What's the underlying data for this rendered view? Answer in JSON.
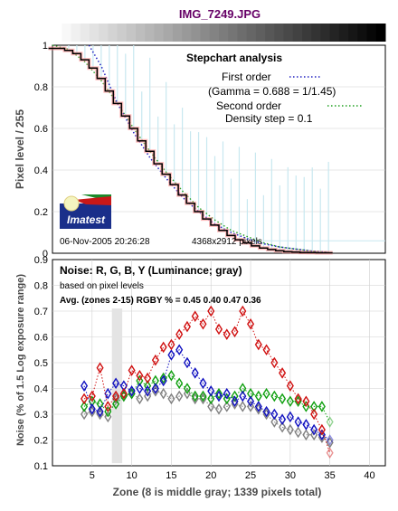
{
  "title": "IMG_7249.JPG",
  "colors": {
    "title": "#660066",
    "panel_text": "#000000",
    "axis_label": "#4a4a4a",
    "first_order_fit": "#2020c0",
    "second_order_fit": "#20a020",
    "red": "#d01010",
    "green": "#10a010",
    "blue": "#1010c0",
    "gray": "#808080",
    "highlight_band": "#e4e4e4",
    "stepchart_trace": "#000000",
    "stepchart_pixels": "#ff8888",
    "stepchart_noise": "#c8e8f0"
  },
  "logo": {
    "text": "Imatest",
    "colors": {
      "navy": "#1a2f8a",
      "red": "#c81818",
      "green": "#1a8a2a",
      "sun": "#f4f4c0"
    }
  },
  "chart_data": [
    {
      "type": "line",
      "title": "Stepchart analysis",
      "ylabel": "Pixel level / 255",
      "ylim": [
        0,
        1
      ],
      "xlim": [
        1,
        42
      ],
      "yticks": [
        "0",
        "0.2",
        "0.4",
        "0.6",
        "0.8",
        "1"
      ],
      "grid": true,
      "legend": {
        "position": "top-right",
        "first_order": "First order",
        "gamma": "(Gamma = 0.688 = 1/1.45)",
        "second_order": "Second order",
        "density_step": "Density step = 0.1"
      },
      "date_label": "06-Nov-2005 20:26:28",
      "size_label": "4368x2912 pixels",
      "gradient_strip": "dark-to-light step wedge (white at left, black at right)",
      "series": [
        {
          "name": "Second order",
          "style": "green dotted, hidden behind trace",
          "x": [
            1,
            3,
            5,
            7,
            9,
            11,
            13,
            15,
            17,
            19,
            21,
            23,
            25,
            27,
            29,
            31,
            33,
            35
          ],
          "values": [
            1.0,
            0.98,
            0.92,
            0.83,
            0.72,
            0.6,
            0.49,
            0.39,
            0.3,
            0.22,
            0.16,
            0.11,
            0.08,
            0.05,
            0.03,
            0.02,
            0.01,
            0.005
          ]
        },
        {
          "name": "First order",
          "style": "blue dotted",
          "x": [
            5.5,
            7,
            9,
            11,
            13,
            15,
            17,
            19,
            21,
            23,
            25,
            27,
            29,
            31,
            33,
            35
          ],
          "values": [
            1.0,
            0.9,
            0.72,
            0.58,
            0.46,
            0.36,
            0.27,
            0.2,
            0.14,
            0.1,
            0.07,
            0.045,
            0.03,
            0.02,
            0.01,
            0.005
          ]
        },
        {
          "name": "Stepchart",
          "style": "black step trace",
          "x": [
            1,
            2,
            3,
            4,
            5,
            6,
            7,
            8,
            9,
            10,
            11,
            12,
            13,
            14,
            15,
            16,
            17,
            18,
            19,
            20,
            21,
            22,
            23,
            24,
            25,
            26,
            27,
            28,
            29,
            30,
            31,
            32,
            33,
            34,
            35
          ],
          "values": [
            0.985,
            0.985,
            0.975,
            0.96,
            0.93,
            0.89,
            0.84,
            0.78,
            0.72,
            0.66,
            0.6,
            0.54,
            0.49,
            0.43,
            0.38,
            0.33,
            0.28,
            0.24,
            0.2,
            0.165,
            0.135,
            0.11,
            0.085,
            0.065,
            0.05,
            0.035,
            0.025,
            0.018,
            0.012,
            0.008,
            0.006,
            0.004,
            0.003,
            0.002,
            0.002
          ]
        }
      ]
    },
    {
      "type": "scatter",
      "title": "Noise: R, G, B, Y (Luminance; gray)",
      "subtitle": "based on pixel levels",
      "avg_label": "Avg. (zones 2-15) RGBY % = 0.45  0.40  0.47  0.36",
      "xlabel": "Zone  (8 is middle gray;  1339 pixels total)",
      "ylabel": "Noise  (% of 1.5 Log exposure range)",
      "xlim": [
        0,
        42
      ],
      "ylim": [
        0.1,
        0.9
      ],
      "xticks": [
        "5",
        "10",
        "15",
        "20",
        "25",
        "30",
        "35",
        "40"
      ],
      "yticks": [
        "0.1",
        "0.2",
        "0.3",
        "0.4",
        "0.5",
        "0.6",
        "0.7",
        "0.8",
        "0.9"
      ],
      "grid": true,
      "highlight_band_zone": [
        7.5,
        8.8
      ],
      "x": [
        4,
        5,
        6,
        7,
        8,
        9,
        10,
        11,
        12,
        13,
        14,
        15,
        16,
        17,
        18,
        19,
        20,
        21,
        22,
        23,
        24,
        25,
        26,
        27,
        28,
        29,
        30,
        31,
        32,
        33,
        34,
        35
      ],
      "series": [
        {
          "name": "R",
          "color_key": "red",
          "values": [
            0.36,
            0.37,
            0.48,
            0.33,
            0.37,
            0.38,
            0.47,
            0.45,
            0.44,
            0.51,
            0.56,
            0.57,
            0.61,
            0.64,
            0.68,
            0.65,
            0.7,
            0.63,
            0.61,
            0.62,
            0.7,
            0.65,
            0.57,
            0.55,
            0.5,
            0.46,
            0.41,
            0.36,
            0.35,
            0.3,
            0.24,
            0.15
          ]
        },
        {
          "name": "G",
          "color_key": "green",
          "values": [
            0.33,
            0.35,
            0.34,
            0.31,
            0.34,
            0.37,
            0.38,
            0.43,
            0.41,
            0.43,
            0.44,
            0.45,
            0.42,
            0.4,
            0.37,
            0.37,
            0.36,
            0.38,
            0.36,
            0.37,
            0.4,
            0.38,
            0.37,
            0.38,
            0.37,
            0.36,
            0.35,
            0.35,
            0.33,
            0.33,
            0.33,
            0.27
          ]
        },
        {
          "name": "B",
          "color_key": "blue",
          "values": [
            0.41,
            0.32,
            0.31,
            0.38,
            0.42,
            0.41,
            0.39,
            0.4,
            0.39,
            0.4,
            0.43,
            0.53,
            0.55,
            0.5,
            0.46,
            0.42,
            0.39,
            0.37,
            0.38,
            0.35,
            0.37,
            0.35,
            0.33,
            0.31,
            0.3,
            0.28,
            0.29,
            0.27,
            0.26,
            0.24,
            0.22,
            0.2
          ]
        },
        {
          "name": "Y",
          "color_key": "gray",
          "values": [
            0.3,
            0.31,
            0.3,
            0.29,
            0.36,
            0.37,
            0.38,
            0.36,
            0.37,
            0.39,
            0.38,
            0.36,
            0.37,
            0.38,
            0.36,
            0.36,
            0.33,
            0.32,
            0.33,
            0.34,
            0.33,
            0.33,
            0.32,
            0.3,
            0.27,
            0.25,
            0.24,
            0.23,
            0.22,
            0.22,
            0.21,
            0.19
          ]
        }
      ]
    }
  ]
}
